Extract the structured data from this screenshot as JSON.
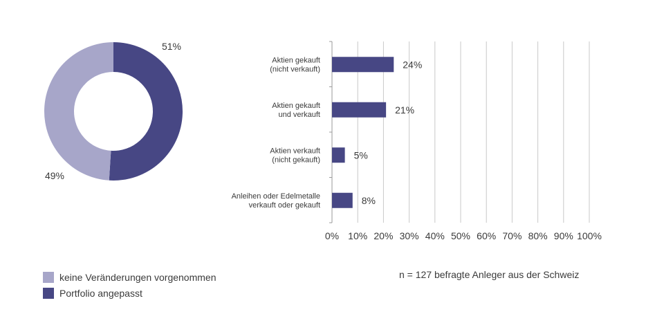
{
  "colors": {
    "unchanged": "#a7a6c9",
    "adjusted": "#474784",
    "axis": "#999999",
    "grid": "#c8c8c8"
  },
  "chart_data": [
    {
      "type": "pie",
      "labels": [
        "Portfolio angepasst",
        "keine Veränderungen vorgenommen"
      ],
      "values": [
        51,
        49
      ],
      "value_labels": [
        "51%",
        "49%"
      ],
      "colors": [
        "#474784",
        "#a7a6c9"
      ]
    },
    {
      "type": "bar",
      "orientation": "horizontal",
      "categories": [
        [
          "Aktien gekauft",
          "(nicht verkauft)"
        ],
        [
          "Aktien gekauft",
          "und verkauft"
        ],
        [
          "Aktien verkauft",
          "(nicht gekauft)"
        ],
        [
          "Anleihen oder Edelmetalle",
          "verkauft oder gekauft"
        ]
      ],
      "values": [
        24,
        21,
        5,
        8
      ],
      "value_labels": [
        "24%",
        "21%",
        "5%",
        "8%"
      ],
      "xlim": [
        0,
        100
      ],
      "xticks": [
        "0%",
        "10%",
        "20%",
        "30%",
        "40%",
        "50%",
        "60%",
        "70%",
        "80%",
        "90%",
        "100%"
      ],
      "grid": true,
      "color": "#474784"
    }
  ],
  "legend": [
    {
      "label": "keine Veränderungen vorgenommen",
      "color": "#a7a6c9"
    },
    {
      "label": "Portfolio angepasst",
      "color": "#474784"
    }
  ],
  "note": "n = 127 befragte Anleger aus der Schweiz"
}
